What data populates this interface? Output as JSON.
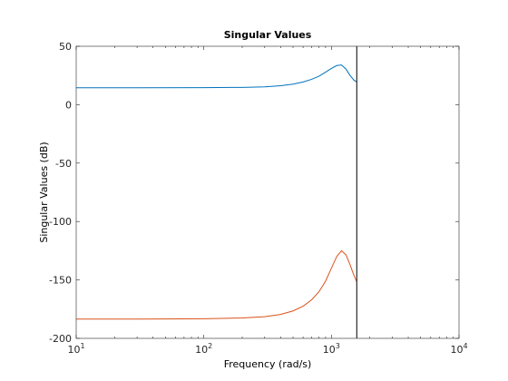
{
  "chart_data": {
    "type": "line",
    "title": "Singular Values",
    "xlabel": "Frequency (rad/s)",
    "ylabel": "Singular Values (dB)",
    "x_scale": "log",
    "xlim": [
      10,
      10000
    ],
    "ylim": [
      -200,
      50
    ],
    "x_ticks": [
      {
        "value": 10,
        "base": "10",
        "exp": "1"
      },
      {
        "value": 100,
        "base": "10",
        "exp": "2"
      },
      {
        "value": 1000,
        "base": "10",
        "exp": "3"
      },
      {
        "value": 10000,
        "base": "10",
        "exp": "4"
      }
    ],
    "y_ticks": [
      {
        "value": 50,
        "label": "50"
      },
      {
        "value": 0,
        "label": "0"
      },
      {
        "value": -50,
        "label": "-50"
      },
      {
        "value": -100,
        "label": "-100"
      },
      {
        "value": -150,
        "label": "-150"
      },
      {
        "value": -200,
        "label": "-200"
      }
    ],
    "grid": false,
    "vertical_line_x": 1580,
    "series": [
      {
        "color": "#0072BD",
        "x": [
          10,
          30,
          100,
          200,
          300,
          400,
          500,
          600,
          700,
          800,
          900,
          1000,
          1100,
          1200,
          1300,
          1400,
          1500,
          1580
        ],
        "y": [
          14.5,
          14.5,
          14.6,
          14.8,
          15.3,
          16.2,
          17.6,
          19.4,
          21.7,
          24.4,
          27.8,
          31.0,
          33.5,
          34.0,
          30.5,
          25.0,
          21.0,
          19.5
        ]
      },
      {
        "color": "#D95319",
        "x": [
          10,
          30,
          100,
          200,
          300,
          400,
          500,
          600,
          700,
          800,
          900,
          1000,
          1100,
          1200,
          1300,
          1400,
          1500,
          1580
        ],
        "y": [
          -183.5,
          -183.5,
          -183.2,
          -182.5,
          -181.5,
          -179.5,
          -176.5,
          -172.5,
          -167.0,
          -160.0,
          -151.0,
          -140.0,
          -130.0,
          -125.0,
          -128.5,
          -137.0,
          -146.0,
          -151.5
        ]
      }
    ]
  }
}
